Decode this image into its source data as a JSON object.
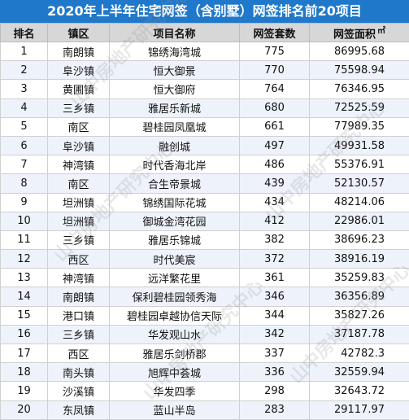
{
  "title": "2020年上半年住宅网签（含别墅）网签排名前20项目",
  "headers": {
    "rank": "排名",
    "town": "镇区",
    "project": "项目名称",
    "units": "网签套数",
    "area": "网签面积",
    "area_unit": "㎡"
  },
  "rows": [
    {
      "rank": "1",
      "town": "南朗镇",
      "project": "锦绣海湾城",
      "units": "775",
      "area": "86995.68"
    },
    {
      "rank": "2",
      "town": "阜沙镇",
      "project": "恒大御景",
      "units": "770",
      "area": "75598.94"
    },
    {
      "rank": "3",
      "town": "黄圃镇",
      "project": "恒大御府",
      "units": "764",
      "area": "76346.95"
    },
    {
      "rank": "4",
      "town": "三乡镇",
      "project": "雅居乐新城",
      "units": "680",
      "area": "72525.59"
    },
    {
      "rank": "5",
      "town": "南区",
      "project": "碧桂园凤凰城",
      "units": "661",
      "area": "77989.35"
    },
    {
      "rank": "6",
      "town": "阜沙镇",
      "project": "融创城",
      "units": "497",
      "area": "49931.58"
    },
    {
      "rank": "7",
      "town": "神湾镇",
      "project": "时代香海北岸",
      "units": "486",
      "area": "55376.91"
    },
    {
      "rank": "8",
      "town": "南区",
      "project": "合生帝景城",
      "units": "439",
      "area": "52130.57"
    },
    {
      "rank": "9",
      "town": "坦洲镇",
      "project": "锦绣国际花城",
      "units": "434",
      "area": "48214.06"
    },
    {
      "rank": "10",
      "town": "坦洲镇",
      "project": "御城金湾花园",
      "units": "412",
      "area": "22986.01"
    },
    {
      "rank": "11",
      "town": "三乡镇",
      "project": "雅居乐锦城",
      "units": "382",
      "area": "38696.23"
    },
    {
      "rank": "12",
      "town": "西区",
      "project": "时代美宸",
      "units": "372",
      "area": "38916.19"
    },
    {
      "rank": "13",
      "town": "神湾镇",
      "project": "远洋繁花里",
      "units": "361",
      "area": "35259.83"
    },
    {
      "rank": "14",
      "town": "南朗镇",
      "project": "保利碧桂园领秀海",
      "units": "346",
      "area": "36356.89"
    },
    {
      "rank": "15",
      "town": "港口镇",
      "project": "碧桂园卓越协信天际",
      "units": "344",
      "area": "35827.26"
    },
    {
      "rank": "16",
      "town": "三乡镇",
      "project": "华发观山水",
      "units": "342",
      "area": "37187.78"
    },
    {
      "rank": "17",
      "town": "西区",
      "project": "雅居乐剑桥郡",
      "units": "337",
      "area": "42782.3"
    },
    {
      "rank": "18",
      "town": "南头镇",
      "project": "旭辉中荟城",
      "units": "336",
      "area": "32559.94"
    },
    {
      "rank": "19",
      "town": "沙溪镇",
      "project": "华发四季",
      "units": "298",
      "area": "32643.72"
    },
    {
      "rank": "20",
      "town": "东凤镇",
      "project": "蓝山半岛",
      "units": "283",
      "area": "29117.97"
    }
  ],
  "watermark": "山中房地产研究中心",
  "colors": {
    "title_bg": "#1f78c9",
    "header_bg": "#d7d7d7",
    "row_alt_bg": "#eef3fb"
  }
}
